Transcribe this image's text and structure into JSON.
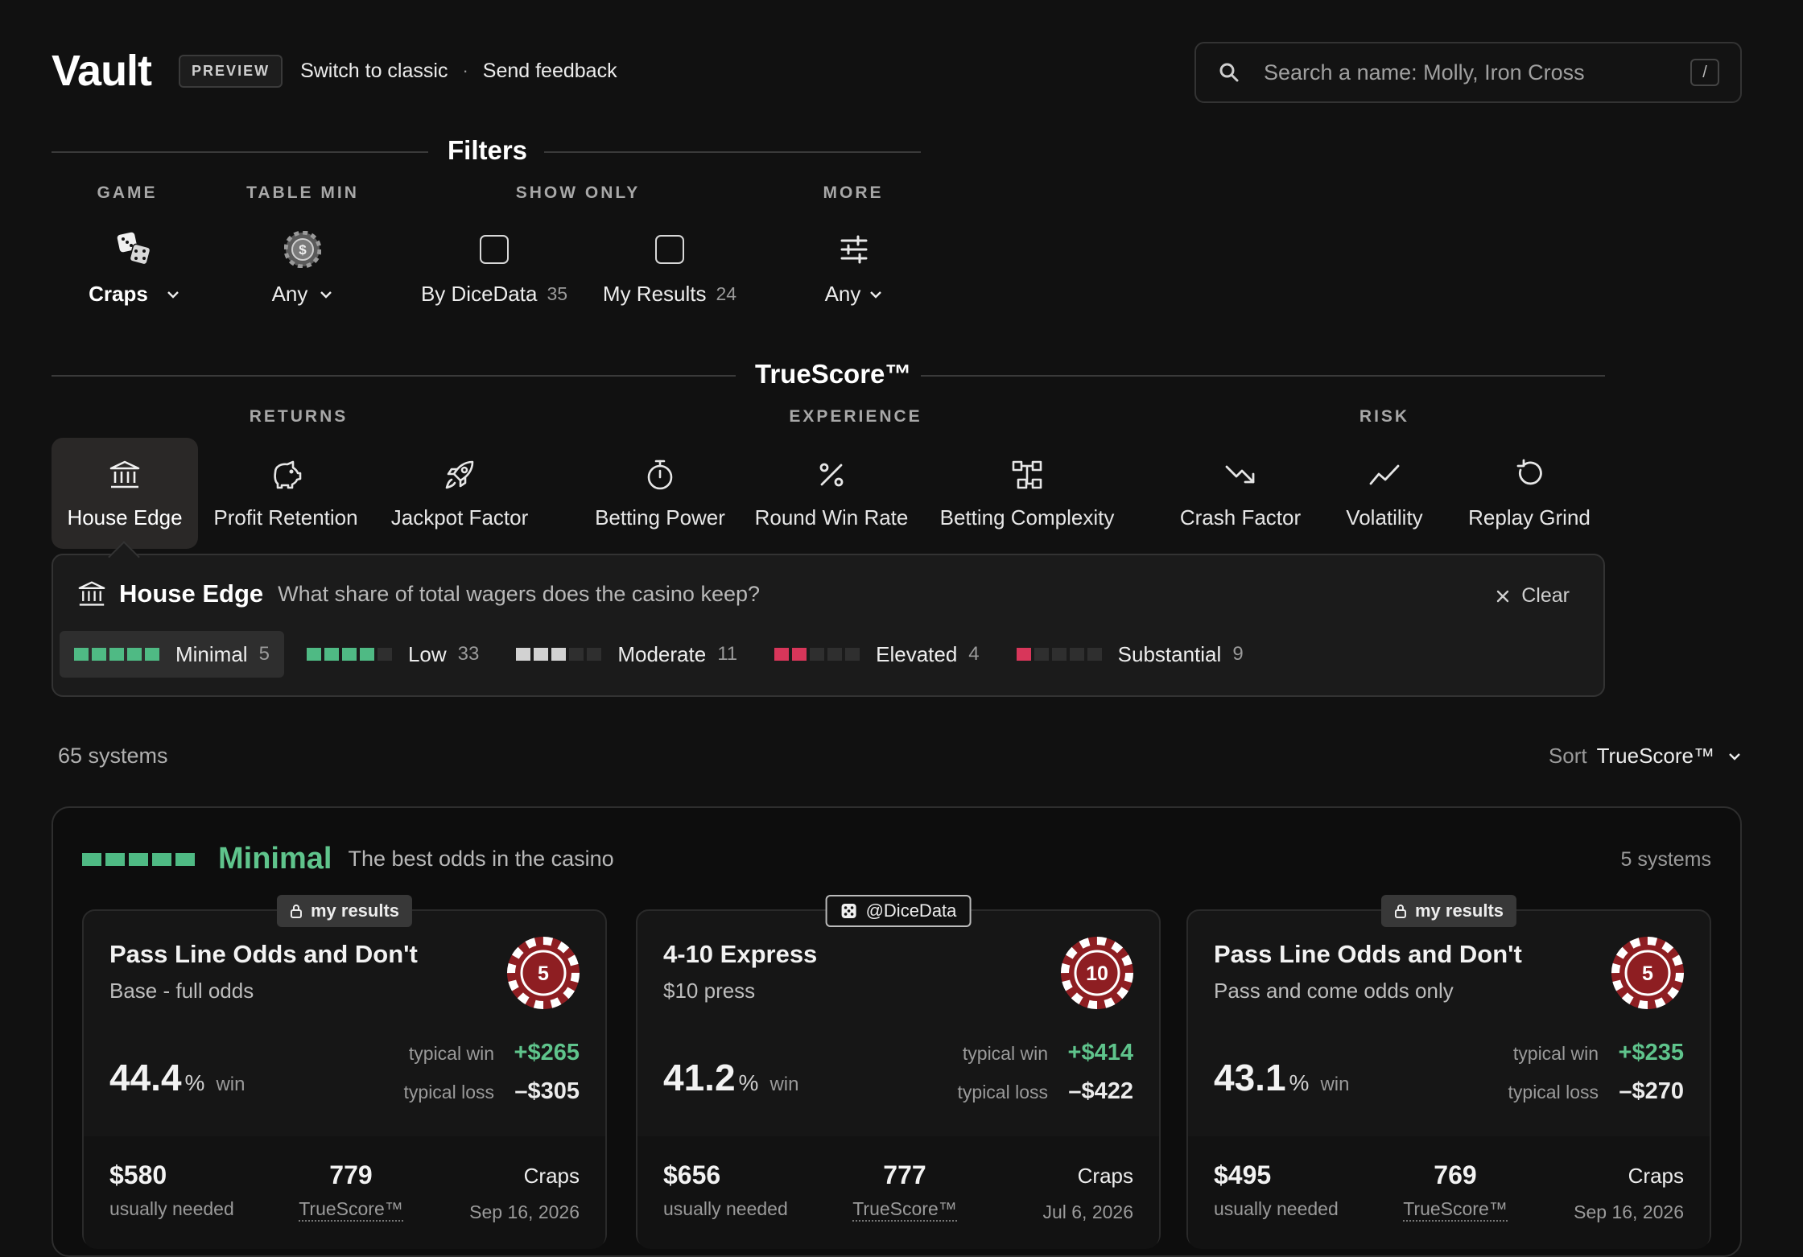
{
  "header": {
    "logo": "Vault",
    "badge": "PREVIEW",
    "switch_link": "Switch to classic",
    "separator": "·",
    "feedback_link": "Send feedback",
    "search_placeholder": "Search a name: Molly, Iron Cross",
    "search_shortcut": "/"
  },
  "filters": {
    "title": "Filters",
    "game": {
      "heading": "GAME",
      "value": "Craps"
    },
    "table_min": {
      "heading": "TABLE MIN",
      "value": "Any"
    },
    "show_only": {
      "heading": "SHOW ONLY",
      "options": [
        {
          "label": "By DiceData",
          "count": "35",
          "checked": false
        },
        {
          "label": "My Results",
          "count": "24",
          "checked": false
        }
      ]
    },
    "more": {
      "heading": "MORE",
      "value": "Any"
    }
  },
  "truescore": {
    "title": "TrueScore™",
    "groups": [
      "RETURNS",
      "EXPERIENCE",
      "RISK"
    ],
    "tabs": [
      {
        "label": "House Edge",
        "icon": "bank-icon",
        "active": true
      },
      {
        "label": "Profit Retention",
        "icon": "piggy-bank-icon"
      },
      {
        "label": "Jackpot Factor",
        "icon": "rocket-icon"
      },
      {
        "label": "Betting Power",
        "icon": "stopwatch-icon"
      },
      {
        "label": "Round Win Rate",
        "icon": "percent-icon"
      },
      {
        "label": "Betting Complexity",
        "icon": "hierarchy-icon"
      },
      {
        "label": "Crash Factor",
        "icon": "trend-down-icon"
      },
      {
        "label": "Volatility",
        "icon": "zigzag-icon"
      },
      {
        "label": "Replay Grind",
        "icon": "rotate-icon"
      }
    ],
    "detail": {
      "title": "House Edge",
      "question": "What share of total wagers does the casino keep?",
      "clear": "Clear",
      "levels": [
        {
          "name": "Minimal",
          "count": "5",
          "filled": 5,
          "color": "#4fba84",
          "active": true
        },
        {
          "name": "Low",
          "count": "33",
          "filled": 4,
          "color": "#4fba84"
        },
        {
          "name": "Moderate",
          "count": "11",
          "filled": 3,
          "color": "#d2d2d2"
        },
        {
          "name": "Elevated",
          "count": "4",
          "filled": 2,
          "color": "#d8365a"
        },
        {
          "name": "Substantial",
          "count": "9",
          "filled": 1,
          "color": "#d8365a"
        }
      ]
    }
  },
  "results": {
    "count": "65 systems",
    "sort_label": "Sort",
    "sort_value": "TrueScore™"
  },
  "group": {
    "title": "Minimal",
    "description": "The best odds in the casino",
    "count": "5 systems",
    "accent": "#5fc48c"
  },
  "cards": [
    {
      "tag": "my results",
      "tag_type": "mine",
      "name": "Pass Line Odds and Don't",
      "subtitle": "Base - full odds",
      "chip": "5",
      "win_pct": "44.4",
      "pct_sign": "%",
      "win_word": "win",
      "typical_win_label": "typical win",
      "typical_win": "+$265",
      "typical_loss_label": "typical loss",
      "typical_loss": "–$305",
      "needed": "$580",
      "needed_label": "usually needed",
      "score": "779",
      "score_label": "TrueScore™",
      "game": "Craps",
      "date": "Sep 16, 2026"
    },
    {
      "tag": "@DiceData",
      "tag_type": "dd",
      "name": "4-10 Express",
      "subtitle": "$10 press",
      "chip": "10",
      "win_pct": "41.2",
      "pct_sign": "%",
      "win_word": "win",
      "typical_win_label": "typical win",
      "typical_win": "+$414",
      "typical_loss_label": "typical loss",
      "typical_loss": "–$422",
      "needed": "$656",
      "needed_label": "usually needed",
      "score": "777",
      "score_label": "TrueScore™",
      "game": "Craps",
      "date": "Jul 6, 2026"
    },
    {
      "tag": "my results",
      "tag_type": "mine",
      "name": "Pass Line Odds and Don't",
      "subtitle": "Pass and come odds only",
      "chip": "5",
      "win_pct": "43.1",
      "pct_sign": "%",
      "win_word": "win",
      "typical_win_label": "typical win",
      "typical_win": "+$235",
      "typical_loss_label": "typical loss",
      "typical_loss": "–$270",
      "needed": "$495",
      "needed_label": "usually needed",
      "score": "769",
      "score_label": "TrueScore™",
      "game": "Craps",
      "date": "Sep 16, 2026"
    }
  ]
}
